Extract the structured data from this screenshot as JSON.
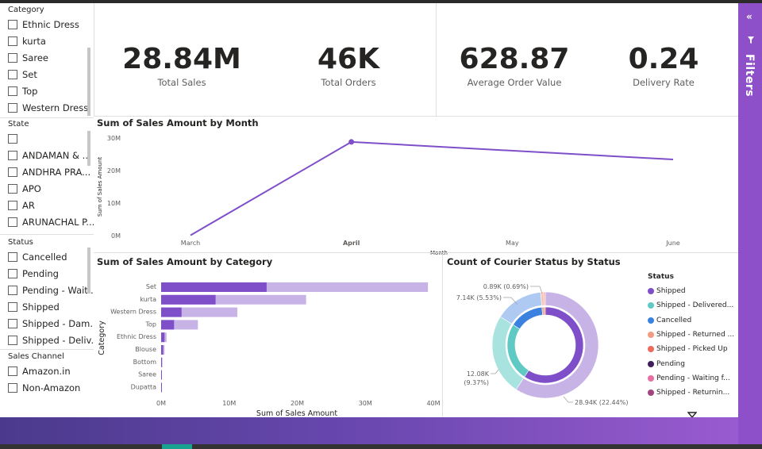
{
  "slicers": {
    "category": {
      "title": "Category",
      "items": [
        "Ethnic Dress",
        "kurta",
        "Saree",
        "Set",
        "Top",
        "Western Dress"
      ]
    },
    "state": {
      "title": "State",
      "items": [
        "",
        "ANDAMAN & ...",
        "ANDHRA PRA...",
        "APO",
        "AR",
        "ARUNACHAL P..."
      ]
    },
    "status": {
      "title": "Status",
      "items": [
        "Cancelled",
        "Pending",
        "Pending - Waiti...",
        "Shipped",
        "Shipped - Dam...",
        "Shipped - Deliv..."
      ]
    },
    "sales_channel": {
      "title": "Sales Channel",
      "items": [
        "Amazon.in",
        "Non-Amazon"
      ]
    }
  },
  "kpis": [
    {
      "value": "28.84M",
      "label": "Total Sales"
    },
    {
      "value": "46K",
      "label": "Total Orders"
    },
    {
      "value": "628.87",
      "label": "Average Order Value"
    },
    {
      "value": "0.24",
      "label": "Delivery Rate"
    }
  ],
  "filters_pane": {
    "label": "Filters"
  },
  "colors": {
    "accent": "#7f4fc9",
    "accent_light": "#c8b3e6",
    "filters_bg": "#8e50c8"
  },
  "chart_data": [
    {
      "type": "line",
      "title": "Sum of Sales Amount by Month",
      "xlabel": "Month",
      "ylabel": "Sum of Sales Amount",
      "categories": [
        "March",
        "April",
        "May",
        "June"
      ],
      "values": [
        0.1,
        28.8,
        null,
        23.4
      ],
      "ylim": [
        0,
        30
      ],
      "yticks": [
        "0M",
        "10M",
        "20M",
        "30M"
      ],
      "highlight": "April"
    },
    {
      "type": "bar",
      "title": "Sum of Sales Amount by Category",
      "xlabel": "Sum of Sales Amount",
      "ylabel": "Category",
      "categories": [
        "Set",
        "kurta",
        "Western Dress",
        "Top",
        "Ethnic Dress",
        "Blouse",
        "Bottom",
        "Saree",
        "Dupatta"
      ],
      "series": [
        {
          "values": [
            15.5,
            8.0,
            3.0,
            1.9,
            0.5,
            0.3,
            0.1,
            0.1,
            0.01
          ]
        },
        {
          "values": [
            39.2,
            21.3,
            11.2,
            5.4,
            0.8,
            0.5,
            0.2,
            0.1,
            0.02
          ]
        }
      ],
      "xlim": [
        0,
        40
      ],
      "xticks": [
        "0M",
        "10M",
        "20M",
        "30M",
        "40M"
      ]
    },
    {
      "type": "pie",
      "title": "Count of Courier Status by Status",
      "legend_title": "Status",
      "legend": [
        {
          "name": "Shipped",
          "color": "#7f4fc9"
        },
        {
          "name": "Shipped - Delivered...",
          "color": "#5fc9c4"
        },
        {
          "name": "Cancelled",
          "color": "#3b82e0"
        },
        {
          "name": "Shipped - Returned ...",
          "color": "#f29b82"
        },
        {
          "name": "Shipped - Picked Up",
          "color": "#ec6a5e"
        },
        {
          "name": "Pending",
          "color": "#3e1f5c"
        },
        {
          "name": "Pending - Waiting f...",
          "color": "#e76fa3"
        },
        {
          "name": "Shipped - Returnin...",
          "color": "#a3457d"
        }
      ],
      "outer_ring": [
        {
          "value": 28.94,
          "color": "#c8b3e6"
        },
        {
          "value": 12.08,
          "color": "#a9e3e0"
        },
        {
          "value": 7.14,
          "color": "#aec9f2"
        },
        {
          "value": 0.45,
          "color": "#f7c4b6"
        },
        {
          "value": 0.24,
          "color": "#f5aaa3"
        }
      ],
      "inner_ring": [
        {
          "value": 28.94,
          "color": "#7f4fc9"
        },
        {
          "value": 12.08,
          "color": "#5fc9c4"
        },
        {
          "value": 7.14,
          "color": "#3b82e0"
        },
        {
          "value": 0.45,
          "color": "#f29b82"
        },
        {
          "value": 0.24,
          "color": "#ec6a5e"
        }
      ],
      "data_labels": [
        {
          "text": "0.89K (0.69%)"
        },
        {
          "text": "7.14K (5.53%)"
        },
        {
          "text": "12.08K"
        },
        {
          "text": "(9.37%)"
        },
        {
          "text": "28.94K (22.44%)"
        }
      ]
    }
  ]
}
